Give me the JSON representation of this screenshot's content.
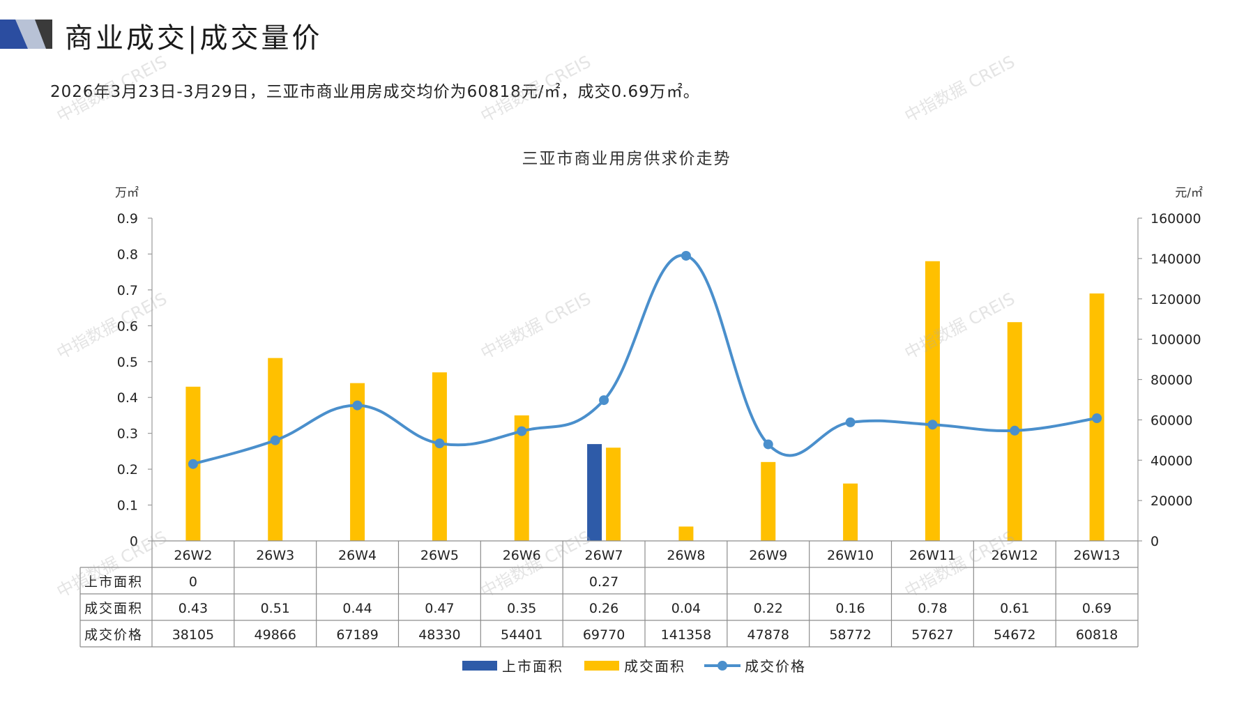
{
  "header": {
    "title": "商业成交|成交量价",
    "summary": "2026年3月23日-3月29日，三亚市商业用房成交均价为60818元/㎡，成交0.69万㎡。"
  },
  "watermark": "中指数据 CREIS",
  "colors": {
    "supply": "#2E5BA8",
    "deal_area": "#FFC000",
    "price": "#4A8FCC",
    "accent_dark": "#2B4DA0",
    "accent_light": "#B8C2D6"
  },
  "chart_data": {
    "type": "bar",
    "title": "三亚市商业用房供求价走势",
    "y_left_unit": "万㎡",
    "y_right_unit": "元/㎡",
    "y_left_range": [
      0,
      0.9
    ],
    "y_left_ticks": [
      "0",
      "0.1",
      "0.2",
      "0.3",
      "0.4",
      "0.5",
      "0.6",
      "0.7",
      "0.8",
      "0.9"
    ],
    "y_right_range": [
      0,
      160000
    ],
    "y_right_ticks": [
      "0",
      "20000",
      "40000",
      "60000",
      "80000",
      "100000",
      "120000",
      "140000",
      "160000"
    ],
    "categories": [
      "26W2",
      "26W3",
      "26W4",
      "26W5",
      "26W6",
      "26W7",
      "26W8",
      "26W9",
      "26W10",
      "26W11",
      "26W12",
      "26W13"
    ],
    "series": [
      {
        "name": "上市面积",
        "type": "bar",
        "axis": "left",
        "values": [
          0,
          null,
          null,
          null,
          null,
          0.27,
          null,
          null,
          null,
          null,
          null,
          null
        ],
        "labels": [
          "0",
          "",
          "",
          "",
          "",
          "0.27",
          "",
          "",
          "",
          "",
          "",
          ""
        ]
      },
      {
        "name": "成交面积",
        "type": "bar",
        "axis": "left",
        "values": [
          0.43,
          0.51,
          0.44,
          0.47,
          0.35,
          0.26,
          0.04,
          0.22,
          0.16,
          0.78,
          0.61,
          0.69
        ],
        "labels": [
          "0.43",
          "0.51",
          "0.44",
          "0.47",
          "0.35",
          "0.26",
          "0.04",
          "0.22",
          "0.16",
          "0.78",
          "0.61",
          "0.69"
        ]
      },
      {
        "name": "成交价格",
        "type": "line",
        "axis": "right",
        "values": [
          38105,
          49866,
          67189,
          48330,
          54401,
          69770,
          141358,
          47878,
          58772,
          57627,
          54672,
          60818
        ],
        "labels": [
          "38105",
          "49866",
          "67189",
          "48330",
          "54401",
          "69770",
          "141358",
          "47878",
          "58772",
          "57627",
          "54672",
          "60818"
        ]
      }
    ],
    "legend_position": "bottom",
    "grid": false
  }
}
